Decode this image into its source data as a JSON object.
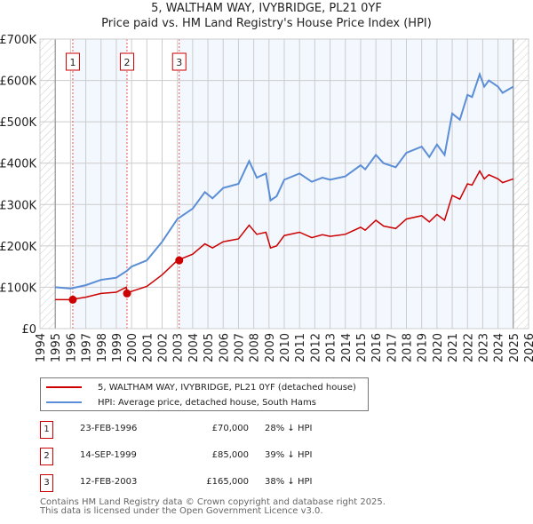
{
  "title": "5, WALTHAM WAY, IVYBRIDGE, PL21 0YF",
  "subtitle": "Price paid vs. HM Land Registry's House Price Index (HPI)",
  "legend": {
    "property": "5, WALTHAM WAY, IVYBRIDGE, PL21 0YF (detached house)",
    "hpi": "HPI: Average price, detached house, South Hams"
  },
  "sales": [
    {
      "n": "1",
      "date": "23-FEB-1996",
      "price": "£70,000",
      "diff": "28% ↓ HPI",
      "x": 1996.15,
      "y": 70
    },
    {
      "n": "2",
      "date": "14-SEP-1999",
      "price": "£85,000",
      "diff": "39% ↓ HPI",
      "x": 1999.7,
      "y": 85
    },
    {
      "n": "3",
      "date": "12-FEB-2003",
      "price": "£165,000",
      "diff": "38% ↓ HPI",
      "x": 2003.12,
      "y": 165
    }
  ],
  "footer": {
    "line1": "Contains HM Land Registry data © Crown copyright and database right 2025.",
    "line2": "This data is licensed under the Open Government Licence v3.0."
  },
  "chart_data": {
    "type": "line",
    "xlim": [
      1994,
      2026
    ],
    "ylim": [
      0,
      700
    ],
    "ylabel_unit": "£K",
    "yticks": [
      "£0",
      "£100K",
      "£200K",
      "£300K",
      "£400K",
      "£500K",
      "£600K",
      "£700K"
    ],
    "xticks": [
      "1994",
      "1995",
      "1996",
      "1997",
      "1998",
      "1999",
      "2000",
      "2001",
      "2002",
      "2003",
      "2004",
      "2005",
      "2006",
      "2007",
      "2008",
      "2009",
      "2010",
      "2011",
      "2012",
      "2013",
      "2014",
      "2015",
      "2016",
      "2017",
      "2018",
      "2019",
      "2020",
      "2021",
      "2022",
      "2023",
      "2024",
      "2025",
      "2026"
    ],
    "data_range": [
      1995,
      2025
    ],
    "colors": {
      "property": "#cc0000",
      "hpi": "#5b8ed6",
      "shade": "#f3f7fe"
    },
    "series": [
      {
        "name": "HPI",
        "x": [
          1995,
          1996,
          1997,
          1998,
          1999,
          1999.7,
          2000,
          2001,
          2002,
          2003,
          2004,
          2004.8,
          2005.3,
          2006,
          2007,
          2007.7,
          2008.2,
          2008.8,
          2009.1,
          2009.5,
          2010,
          2011,
          2011.8,
          2012.5,
          2013,
          2014,
          2015,
          2015.3,
          2016,
          2016.5,
          2017.3,
          2018,
          2019,
          2019.5,
          2020,
          2020.5,
          2021,
          2021.5,
          2022,
          2022.3,
          2022.8,
          2023.1,
          2023.4,
          2024,
          2024.3,
          2025
        ],
        "values": [
          100,
          97,
          105,
          118,
          123,
          140,
          150,
          165,
          210,
          265,
          290,
          330,
          315,
          340,
          350,
          405,
          365,
          375,
          310,
          320,
          360,
          375,
          355,
          365,
          360,
          368,
          395,
          385,
          420,
          400,
          390,
          425,
          440,
          415,
          445,
          420,
          520,
          505,
          565,
          560,
          615,
          585,
          600,
          585,
          570,
          585
        ]
      },
      {
        "name": "Property",
        "x": [
          1995,
          1996,
          1997,
          1998,
          1999,
          1999.65,
          1999.7,
          2000,
          2001,
          2002,
          2003,
          2004,
          2004.8,
          2005.3,
          2006,
          2007,
          2007.7,
          2008.2,
          2008.8,
          2009.1,
          2009.5,
          2010,
          2011,
          2011.8,
          2012.5,
          2013,
          2014,
          2015,
          2015.3,
          2016,
          2016.5,
          2017.3,
          2018,
          2019,
          2019.5,
          2020,
          2020.5,
          2021,
          2021.5,
          2022,
          2022.3,
          2022.8,
          2023.1,
          2023.4,
          2024,
          2024.3,
          2025
        ],
        "values": [
          70,
          70,
          76,
          85,
          88,
          100,
          85,
          90,
          102,
          130,
          165,
          180,
          205,
          195,
          210,
          217,
          250,
          228,
          233,
          195,
          200,
          225,
          233,
          220,
          227,
          223,
          228,
          245,
          238,
          262,
          248,
          242,
          265,
          273,
          258,
          276,
          262,
          322,
          313,
          350,
          347,
          381,
          362,
          372,
          362,
          353,
          362
        ]
      }
    ]
  }
}
